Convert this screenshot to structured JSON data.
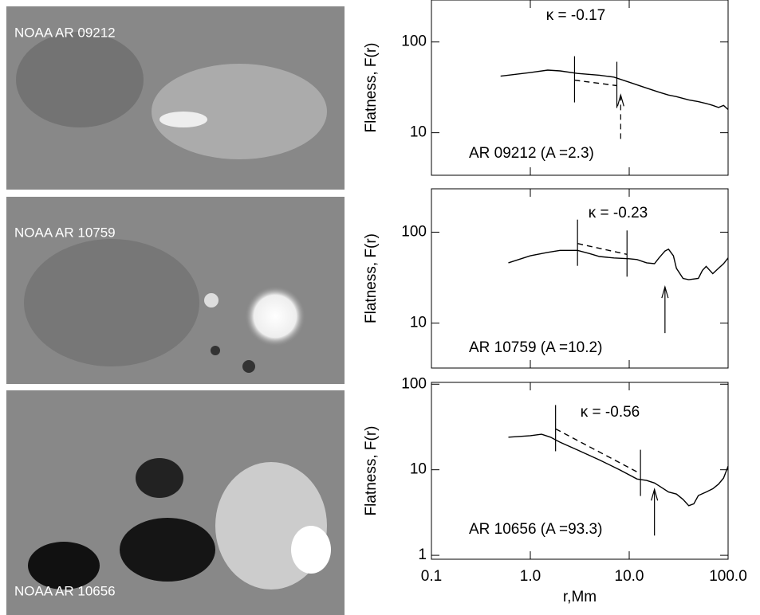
{
  "images": [
    {
      "label": "NOAA AR 09212"
    },
    {
      "label": "NOAA AR 10759"
    },
    {
      "label": "NOAA AR 10656"
    }
  ],
  "chart_data": [
    {
      "type": "line",
      "ylabel": "Flatness, F(r)",
      "annotation": "κ = -0.17",
      "caption": "AR 09212 (A =2.3)",
      "log_x": true,
      "log_y": true,
      "xlim": [
        0.1,
        100
      ],
      "xticks": [
        0.1,
        1,
        10,
        100
      ],
      "xtick_labels": false,
      "ylim": [
        3.4,
        290
      ],
      "yticks": [
        10,
        100
      ],
      "series": [
        {
          "color": "#000000",
          "dashed": false,
          "x": [
            0.5,
            1,
            1.5,
            2,
            3,
            5,
            7,
            10,
            15,
            20,
            25,
            30,
            40,
            50,
            60,
            70,
            80,
            90,
            100
          ],
          "values": [
            42,
            46,
            49,
            48,
            45,
            43,
            41,
            36,
            31,
            28,
            26,
            25,
            23,
            22,
            21,
            20,
            19,
            20,
            18
          ]
        },
        {
          "color": "#000000",
          "dashed": true,
          "x": [
            2.8,
            7.5
          ],
          "values": [
            38,
            33
          ]
        }
      ],
      "fit_bounds": [
        2.8,
        7.5
      ],
      "arrow": {
        "x": 8.2,
        "y": 26,
        "dashed": true
      }
    },
    {
      "type": "line",
      "ylabel": "Flatness, F(r)",
      "annotation": "κ = -0.23",
      "caption": "AR 10759 (A =10.2)",
      "log_x": true,
      "log_y": true,
      "xlim": [
        0.1,
        100
      ],
      "xticks": [
        0.1,
        1,
        10,
        100
      ],
      "xtick_labels": false,
      "ylim": [
        3.2,
        300
      ],
      "yticks": [
        10,
        100
      ],
      "series": [
        {
          "color": "#000000",
          "dashed": false,
          "x": [
            0.6,
            1,
            1.5,
            2,
            3,
            4,
            5,
            7,
            10,
            12,
            15,
            18,
            20,
            23,
            25,
            28,
            30,
            35,
            40,
            50,
            55,
            60,
            70,
            80,
            90,
            100
          ],
          "values": [
            46,
            55,
            60,
            63,
            63,
            58,
            54,
            52,
            51,
            50,
            46,
            45,
            52,
            62,
            65,
            55,
            40,
            31,
            30,
            31,
            38,
            42,
            35,
            40,
            45,
            52
          ]
        },
        {
          "color": "#000000",
          "dashed": true,
          "x": [
            3,
            9.5
          ],
          "values": [
            75,
            57
          ]
        }
      ],
      "fit_bounds": [
        3,
        9.5
      ],
      "arrow": {
        "x": 23,
        "y": 25,
        "dashed": false
      }
    },
    {
      "type": "line",
      "ylabel": "Flatness, F(r)",
      "xlabel": "r,Mm",
      "annotation": "κ = -0.56",
      "caption": "AR 10656 (A =93.3)",
      "log_x": true,
      "log_y": true,
      "xlim": [
        0.1,
        100
      ],
      "xticks": [
        {
          "value": 0.1,
          "label": "0.1"
        },
        {
          "value": 1,
          "label": "1.0"
        },
        {
          "value": 10,
          "label": "10.0"
        },
        {
          "value": 100,
          "label": "100.0"
        }
      ],
      "xtick_labels": true,
      "ylim": [
        0.9,
        105
      ],
      "yticks": [
        1,
        10,
        100
      ],
      "series": [
        {
          "color": "#000000",
          "dashed": false,
          "x": [
            0.6,
            1,
            1.3,
            1.6,
            2,
            3,
            5,
            8,
            12,
            15,
            18,
            20,
            25,
            30,
            35,
            40,
            45,
            50,
            60,
            70,
            80,
            90,
            100
          ],
          "values": [
            24,
            25,
            26,
            24,
            21,
            17,
            13,
            10,
            7.8,
            7.5,
            7,
            6.5,
            5.5,
            5.2,
            4.5,
            3.8,
            4,
            5,
            5.5,
            6,
            6.8,
            8,
            11
          ]
        },
        {
          "color": "#000000",
          "dashed": true,
          "x": [
            1.8,
            13
          ],
          "values": [
            30,
            9
          ]
        }
      ],
      "fit_bounds": [
        1.8,
        13
      ],
      "arrow": {
        "x": 18,
        "y": 5.9,
        "dashed": false
      }
    }
  ]
}
